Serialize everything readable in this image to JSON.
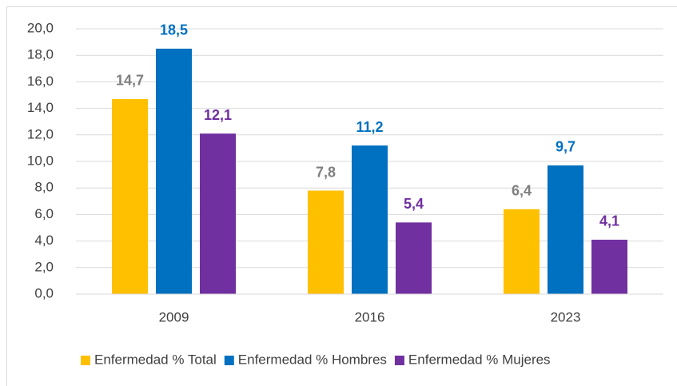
{
  "chart_data": {
    "type": "bar",
    "categories": [
      "2009",
      "2016",
      "2023"
    ],
    "series": [
      {
        "name": "Enfermedad % Total",
        "color": "#FFC000",
        "label_color": "#7F7F7F",
        "values": [
          14.7,
          7.8,
          6.4
        ],
        "value_labels": [
          "14,7",
          "7,8",
          "6,4"
        ]
      },
      {
        "name": "Enfermedad % Hombres",
        "color": "#0070C0",
        "label_color": "#0070C0",
        "values": [
          18.5,
          11.2,
          9.7
        ],
        "value_labels": [
          "18,5",
          "11,2",
          "9,7"
        ]
      },
      {
        "name": "Enfermedad % Mujeres",
        "color": "#7030A0",
        "label_color": "#7030A0",
        "values": [
          12.1,
          5.4,
          4.1
        ],
        "value_labels": [
          "12,1",
          "5,4",
          "4,1"
        ]
      }
    ],
    "ylim": [
      0,
      20
    ],
    "yticks": [
      {
        "value": 0,
        "label": "0,0"
      },
      {
        "value": 2,
        "label": "2,0"
      },
      {
        "value": 4,
        "label": "4,0"
      },
      {
        "value": 6,
        "label": "6,0"
      },
      {
        "value": 8,
        "label": "8,0"
      },
      {
        "value": 10,
        "label": "10,0"
      },
      {
        "value": 12,
        "label": "12,0"
      },
      {
        "value": 14,
        "label": "14,0"
      },
      {
        "value": 16,
        "label": "16,0"
      },
      {
        "value": 18,
        "label": "18,0"
      },
      {
        "value": 20,
        "label": "20,0"
      }
    ],
    "grid": true,
    "legend": "bottom"
  }
}
